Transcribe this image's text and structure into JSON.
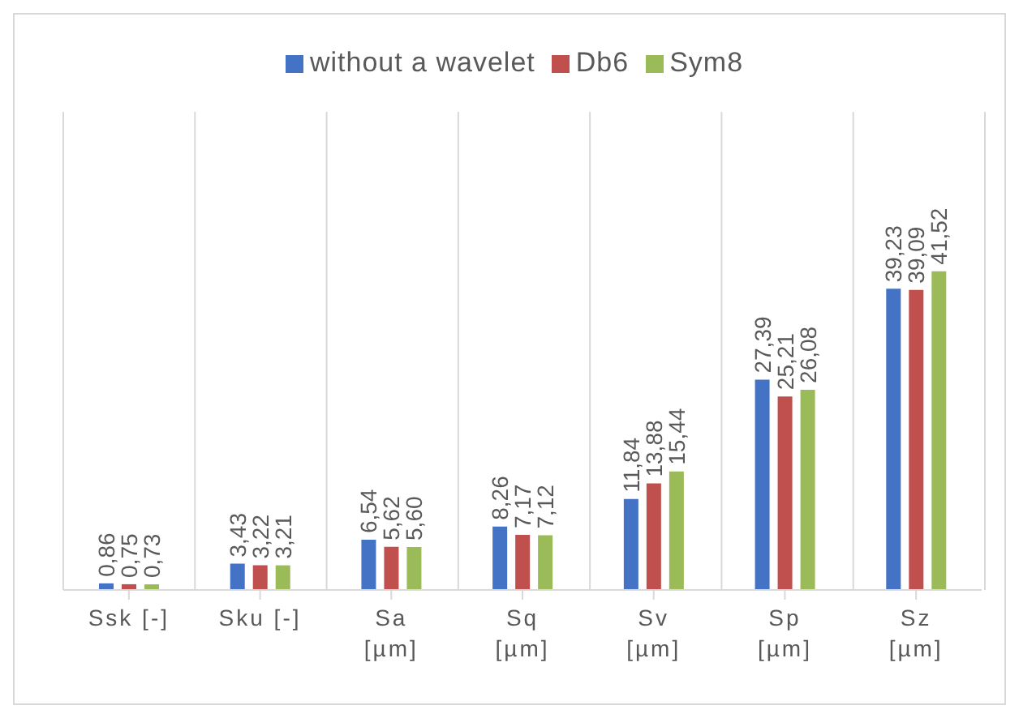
{
  "chart_data": {
    "type": "bar",
    "categories": [
      "Ssk [-]",
      "Sku [-]",
      "Sa [µm]",
      "Sq [µm]",
      "Sv [µm]",
      "Sp [µm]",
      "Sz [µm]"
    ],
    "series": [
      {
        "name": "without a wavelet",
        "color": "#4472c4",
        "values": [
          0.86,
          3.43,
          6.54,
          8.26,
          11.84,
          27.39,
          39.23
        ],
        "value_labels": [
          "0,86",
          "3,43",
          "6,54",
          "8,26",
          "11,84",
          "27,39",
          "39,23"
        ]
      },
      {
        "name": "Db6",
        "color": "#c0504d",
        "values": [
          0.75,
          3.22,
          5.62,
          7.17,
          13.88,
          25.21,
          39.09
        ],
        "value_labels": [
          "0,75",
          "3,22",
          "5,62",
          "7,17",
          "13,88",
          "25,21",
          "39,09"
        ]
      },
      {
        "name": "Sym8",
        "color": "#9bbb59",
        "values": [
          0.73,
          3.21,
          5.6,
          7.12,
          15.44,
          26.08,
          41.52
        ],
        "value_labels": [
          "0,73",
          "3,21",
          "5,60",
          "7,12",
          "15,44",
          "26,08",
          "41,52"
        ]
      }
    ],
    "grid": "x",
    "legend": "top"
  }
}
